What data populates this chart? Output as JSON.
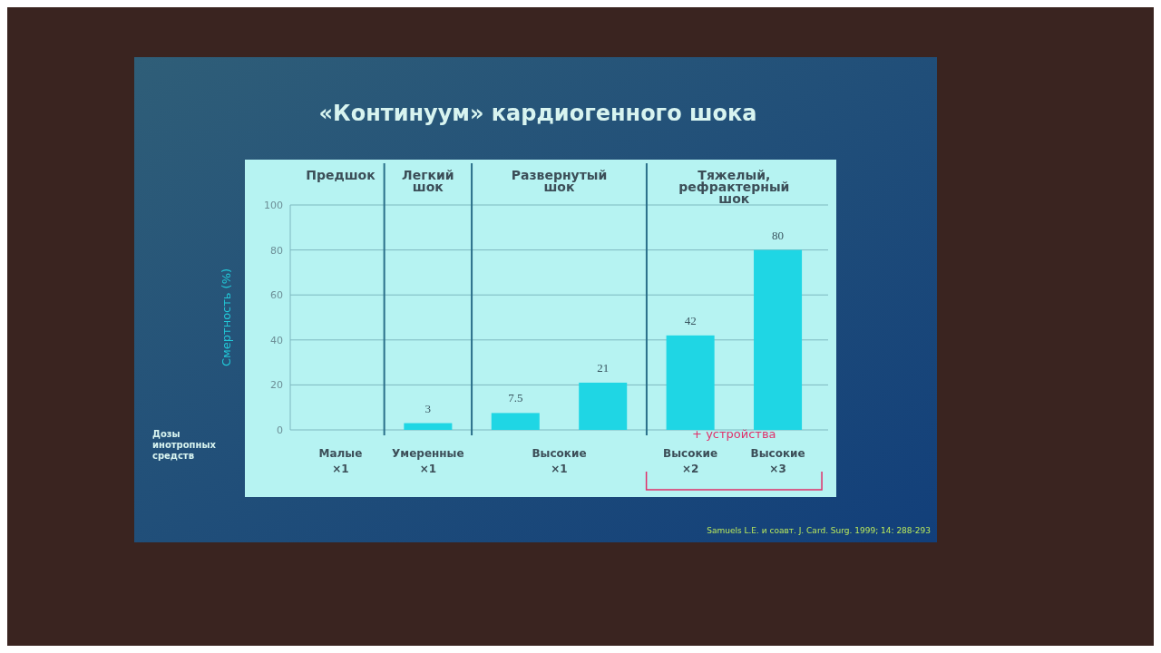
{
  "chart_data": {
    "type": "bar",
    "title": "«Континуум» кардиогенного шока",
    "ylabel": "Смертность (%)",
    "categories": [
      "Малые\n×1",
      "Умеренные\n×1",
      null,
      null,
      "Высокие\n×2",
      "Высокие\n×3"
    ],
    "values": [
      null,
      3,
      7.5,
      21,
      42,
      80
    ],
    "color": "#1fd6e4",
    "data_labels": true,
    "ylim": [
      0,
      100
    ],
    "yticks": [
      0,
      20,
      40,
      60,
      80,
      100
    ],
    "grid": "y",
    "annotations": [
      "Предшок",
      "Легкий\nшок",
      "Развернутый\nшок",
      "Тяжелый,\nрефрактерный\nшок",
      "Высокие\n×1",
      "+ устройства",
      "Дозы\nинотропных\nсредств",
      "Samuels L.E. и соавт. J. Card. Surg. 1999; 14: 288-293"
    ]
  }
}
